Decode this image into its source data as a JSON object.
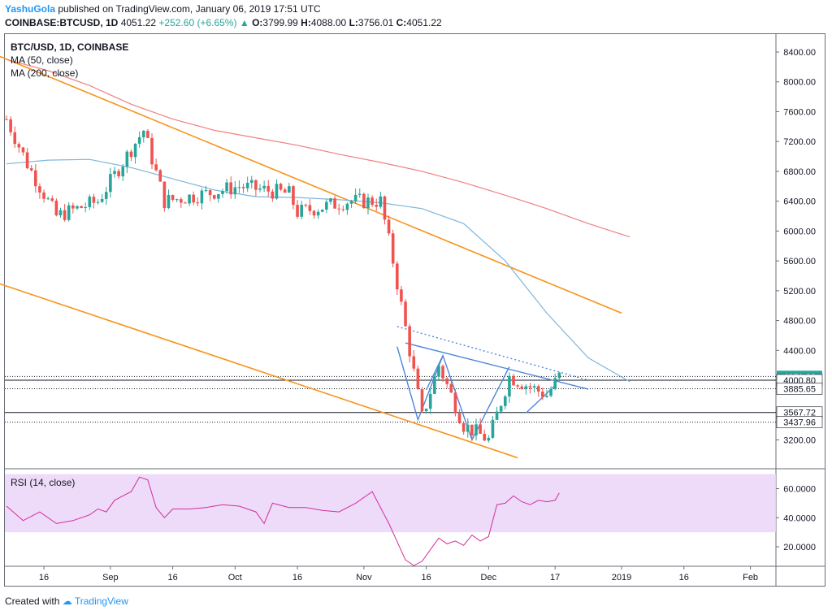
{
  "header": {
    "user": "YashuGola",
    "published_text": "published on TradingView.com, January 06, 2019 17:51 UTC",
    "symbol": "COINBASE:BTCUSD, 1D",
    "last": "4051.22",
    "change": "+252.60 (+6.65%)",
    "open_label": "O:",
    "open": "3799.99",
    "high_label": "H:",
    "high": "4088.00",
    "low_label": "L:",
    "low": "3756.01",
    "close_label": "C:",
    "close": "4051.22"
  },
  "legend": {
    "symbol": "BTC/USD, 1D, COINBASE",
    "ma50": "MA (50, close)",
    "ma200": "MA (200, close)",
    "rsi": "RSI (14, close)"
  },
  "footer": {
    "created_with": "Created with",
    "brand": "TradingView"
  },
  "colors": {
    "up": "#26a69a",
    "down": "#ef5350",
    "ma50": "#7fb5dc",
    "ma200": "#f08080",
    "channel": "#f7931a",
    "pattern": "#4f86d9",
    "rsi_line": "#d1309a",
    "rsi_band": "#ead5f8",
    "price_badge": "#26a69a"
  },
  "chart_data": [
    {
      "type": "candlestick",
      "title": "BTC/USD, 1D, COINBASE",
      "ylim": [
        3000,
        8600
      ],
      "y_ticks": [
        "8400.00",
        "8000.00",
        "7600.00",
        "7200.00",
        "6800.00",
        "6400.00",
        "6000.00",
        "5600.00",
        "5200.00",
        "4800.00",
        "4400.00",
        "3200.00"
      ],
      "x_ticks": [
        "16",
        "Sep",
        "16",
        "Oct",
        "16",
        "Nov",
        "16",
        "Dec",
        "17",
        "2019",
        "16",
        "Feb"
      ],
      "price_labels": [
        {
          "value": 4051.22,
          "text": "4051.22",
          "style": "badge"
        },
        {
          "value": 4000.8,
          "text": "4000.80",
          "style": "solid"
        },
        {
          "value": 3885.65,
          "text": "3885.65",
          "style": "dotted"
        },
        {
          "value": 3567.72,
          "text": "3567.72",
          "style": "solid"
        },
        {
          "value": 3437.96,
          "text": "3437.96",
          "style": "dotted"
        }
      ],
      "series": [
        {
          "name": "MA (50, close)",
          "x_days": [
            0,
            10,
            20,
            30,
            40,
            50,
            60,
            70,
            80,
            90,
            100,
            110,
            120,
            130,
            140,
            150
          ],
          "y": [
            6900,
            6950,
            6960,
            6850,
            6700,
            6550,
            6460,
            6450,
            6420,
            6380,
            6300,
            6100,
            5600,
            4900,
            4300,
            3980
          ]
        },
        {
          "name": "MA (200, close)",
          "x_days": [
            0,
            10,
            20,
            30,
            40,
            50,
            60,
            70,
            80,
            90,
            100,
            110,
            120,
            130,
            140,
            150
          ],
          "y": [
            8300,
            8150,
            7950,
            7700,
            7500,
            7350,
            7250,
            7150,
            7030,
            6920,
            6800,
            6650,
            6480,
            6300,
            6100,
            5920
          ]
        }
      ],
      "candle_segments": [
        {
          "from": 0,
          "to": 5,
          "start": 7500,
          "end": 6900
        },
        {
          "from": 5,
          "to": 12,
          "start": 6900,
          "end": 6200
        },
        {
          "from": 12,
          "to": 22,
          "start": 6200,
          "end": 6400
        },
        {
          "from": 22,
          "to": 30,
          "start": 6400,
          "end": 7100
        },
        {
          "from": 30,
          "to": 33,
          "start": 7100,
          "end": 7350
        },
        {
          "from": 33,
          "to": 38,
          "start": 7350,
          "end": 6400
        },
        {
          "from": 38,
          "to": 48,
          "start": 6400,
          "end": 6500
        },
        {
          "from": 48,
          "to": 56,
          "start": 6500,
          "end": 6600
        },
        {
          "from": 56,
          "to": 68,
          "start": 6600,
          "end": 6500
        },
        {
          "from": 68,
          "to": 70,
          "start": 6500,
          "end": 6250
        },
        {
          "from": 70,
          "to": 82,
          "start": 6250,
          "end": 6400
        },
        {
          "from": 82,
          "to": 90,
          "start": 6400,
          "end": 6400
        },
        {
          "from": 90,
          "to": 93,
          "start": 6400,
          "end": 5600
        },
        {
          "from": 93,
          "to": 97,
          "start": 5600,
          "end": 4400
        },
        {
          "from": 97,
          "to": 100,
          "start": 4400,
          "end": 3500
        },
        {
          "from": 100,
          "to": 104,
          "start": 3500,
          "end": 4200
        },
        {
          "from": 104,
          "to": 110,
          "start": 4200,
          "end": 3400
        },
        {
          "from": 110,
          "to": 116,
          "start": 3400,
          "end": 3200
        },
        {
          "from": 116,
          "to": 121,
          "start": 3200,
          "end": 4050
        },
        {
          "from": 121,
          "to": 130,
          "start": 4050,
          "end": 3800
        },
        {
          "from": 130,
          "to": 133,
          "start": 3800,
          "end": 4051
        }
      ],
      "trendlines": [
        {
          "name": "channel-upper",
          "from": [
            -2,
            8350
          ],
          "to": [
            148,
            4900
          ]
        },
        {
          "name": "channel-lower",
          "from": [
            -2,
            5300
          ],
          "to": [
            123,
            2960
          ]
        },
        {
          "name": "resistance-dotted",
          "from": [
            94,
            4720
          ],
          "to": [
            140,
            4000
          ]
        },
        {
          "name": "pattern-upper",
          "from": [
            96,
            4500
          ],
          "to": [
            140,
            3880
          ]
        },
        {
          "name": "w-left",
          "points": [
            [
              94,
              4450
            ],
            [
              99,
              3470
            ],
            [
              105,
              4330
            ]
          ]
        },
        {
          "name": "w-center",
          "points": [
            [
              101,
              3870
            ],
            [
              105,
              4330
            ],
            [
              112,
              3200
            ],
            [
              121,
              4180
            ]
          ]
        },
        {
          "name": "w-right",
          "points": [
            [
              125,
              3560
            ],
            [
              132,
              3930
            ]
          ]
        }
      ]
    },
    {
      "type": "line",
      "title": "RSI (14, close)",
      "ylim": [
        5,
        72
      ],
      "band": [
        30,
        70
      ],
      "y_ticks": [
        "60.0000",
        "40.0000",
        "20.0000"
      ],
      "series": [
        {
          "name": "RSI (14, close)",
          "x_days": [
            0,
            4,
            8,
            12,
            16,
            20,
            22,
            24,
            26,
            28,
            30,
            32,
            34,
            36,
            38,
            40,
            44,
            48,
            52,
            56,
            60,
            62,
            64,
            68,
            72,
            76,
            80,
            84,
            88,
            92,
            96,
            98,
            100,
            102,
            104,
            106,
            108,
            110,
            112,
            114,
            116,
            118,
            120,
            122,
            124,
            126,
            128,
            130,
            132,
            133
          ],
          "y": [
            48,
            38,
            44,
            36,
            38,
            42,
            46,
            44,
            52,
            55,
            58,
            68,
            66,
            47,
            40,
            46,
            46,
            47,
            49,
            48,
            44,
            36,
            50,
            47,
            47,
            45,
            44,
            50,
            58,
            36,
            11,
            7,
            10,
            18,
            26,
            22,
            24,
            21,
            28,
            24,
            27,
            49,
            50,
            55,
            51,
            49,
            52,
            51,
            52,
            57
          ]
        }
      ]
    }
  ]
}
